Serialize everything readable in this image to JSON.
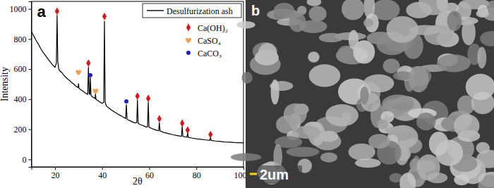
{
  "chart_data": {
    "type": "line",
    "panel_label": "a",
    "x_label": "2θ",
    "y_label": "Intensity",
    "xlim": [
      10,
      100
    ],
    "xticks": [
      20,
      40,
      60,
      80,
      100
    ],
    "ylim": [
      -50,
      1050
    ],
    "yticks": [
      0,
      200,
      400,
      600,
      800,
      1000
    ],
    "grid": false,
    "legend": "upper right",
    "series": [
      {
        "name": "Desulfurization ash",
        "type": "line",
        "color": "#000000",
        "line_style": "solid",
        "x": [
          10,
          11,
          12,
          13,
          14,
          15,
          16,
          17,
          18,
          19,
          20,
          20.6,
          20.9,
          21.2,
          21.6,
          22,
          23,
          24,
          25,
          26,
          27,
          28,
          29,
          29.8,
          30,
          30.2,
          31,
          32,
          33,
          33.9,
          34.2,
          34.5,
          34.8,
          35,
          35.3,
          36,
          37,
          37.2,
          37.4,
          38,
          39,
          40,
          40.7,
          41,
          41.3,
          41.7,
          42,
          43,
          44,
          45,
          46,
          47,
          48,
          49,
          50,
          50.3,
          50.6,
          51,
          52,
          53,
          54,
          54.7,
          55,
          55.3,
          56,
          57,
          58,
          59,
          59.3,
          59.6,
          59.9,
          61,
          62,
          63,
          64,
          64.3,
          64.6,
          66,
          68,
          70,
          72,
          73.7,
          74,
          74.3,
          76,
          76.3,
          76.6,
          78,
          80,
          82,
          84,
          85.7,
          86,
          86.3,
          88,
          90,
          92,
          94,
          96,
          98,
          100
        ],
        "values": [
          850,
          820,
          790,
          765,
          735,
          710,
          690,
          668,
          648,
          628,
          612,
          640,
          960,
          650,
          600,
          590,
          575,
          555,
          540,
          527,
          512,
          500,
          485,
          478,
          505,
          472,
          462,
          452,
          440,
          432,
          615,
          440,
          430,
          545,
          425,
          415,
          405,
          435,
          400,
          392,
          382,
          372,
          380,
          920,
          380,
          360,
          352,
          340,
          328,
          318,
          308,
          298,
          290,
          280,
          272,
          365,
          268,
          262,
          256,
          248,
          242,
          245,
          395,
          240,
          232,
          226,
          220,
          214,
          218,
          380,
          215,
          205,
          200,
          194,
          190,
          245,
          188,
          180,
          172,
          164,
          158,
          153,
          220,
          152,
          147,
          175,
          146,
          142,
          137,
          133,
          129,
          126,
          145,
          126,
          122,
          119,
          116,
          114,
          112,
          111,
          110
        ]
      },
      {
        "name": "Ca(OH)₂",
        "type": "scatter",
        "color": "#d7191c",
        "marker": "diamond",
        "x": [
          20.9,
          34.2,
          41,
          55,
          59.6,
          64.3,
          74,
          76.3,
          86
        ],
        "values": [
          985,
          640,
          950,
          420,
          405,
          270,
          240,
          195,
          165
        ]
      },
      {
        "name": "CaSO₄",
        "type": "scatter",
        "color": "#f0a050",
        "marker": "heart",
        "x": [
          30,
          37.2
        ],
        "values": [
          580,
          455
        ]
      },
      {
        "name": "CaCO₃",
        "type": "scatter",
        "color": "#1f1fbf",
        "marker": "circle",
        "x": [
          35,
          50.3
        ],
        "values": [
          560,
          385
        ]
      }
    ]
  },
  "image": {
    "label": "b",
    "scale_bar": "2um"
  }
}
